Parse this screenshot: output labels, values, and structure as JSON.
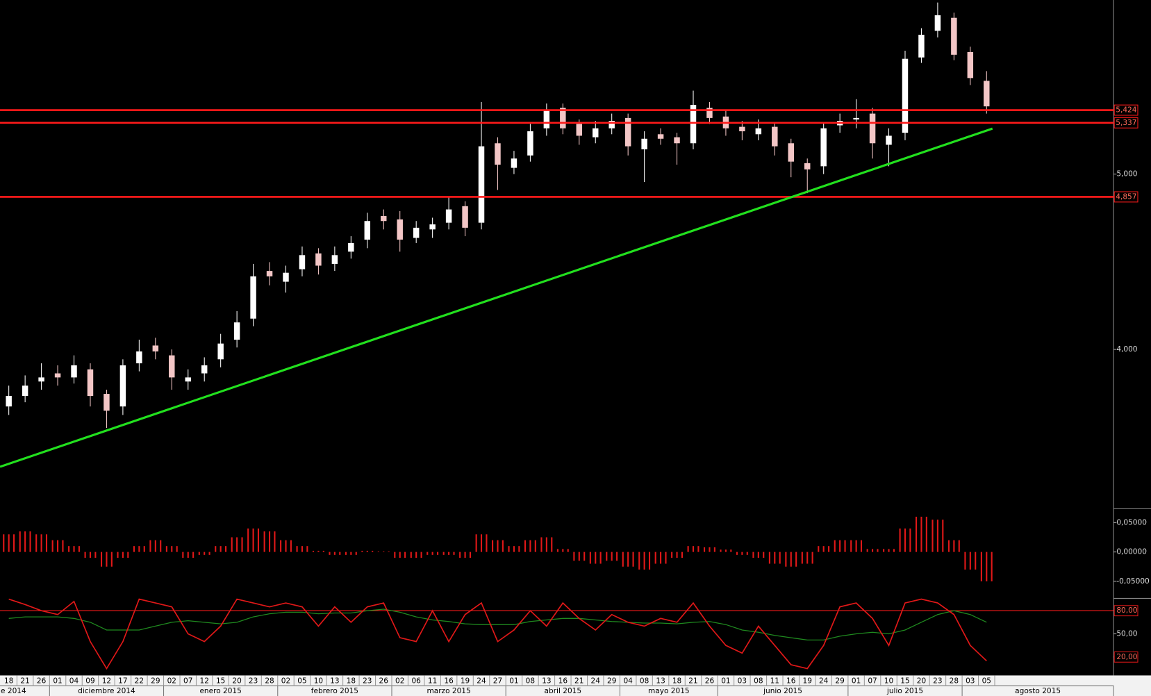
{
  "chart_data": [
    {
      "type": "candlestick",
      "log_scale": true,
      "ylim": [
        3.275,
        6.24
      ],
      "yticks": [
        {
          "value": 4,
          "label": "4,000"
        },
        {
          "value": 5,
          "label": "5,000"
        }
      ],
      "up_color": "#ffffff",
      "down_color": "#f3c6c6",
      "open": [
        3.72,
        3.77,
        3.84,
        3.88,
        3.86,
        3.9,
        3.78,
        3.72,
        3.93,
        4.02,
        3.97,
        3.84,
        3.88,
        3.95,
        4.05,
        4.16,
        4.42,
        4.36,
        4.43,
        4.52,
        4.46,
        4.53,
        4.6,
        4.74,
        4.72,
        4.61,
        4.66,
        4.7,
        4.8,
        4.7,
        5.2,
        5.04,
        5.12,
        5.3,
        5.44,
        5.33,
        5.24,
        5.3,
        5.37,
        5.16,
        5.26,
        5.24,
        5.2,
        5.44,
        5.38,
        5.31,
        5.26,
        5.31,
        5.2,
        5.07,
        5.05,
        5.32,
        5.36,
        5.4,
        5.19,
        5.27,
        5.8,
        6.0,
        6.1,
        5.84,
        5.63
      ],
      "high": [
        3.82,
        3.87,
        3.93,
        3.92,
        3.97,
        3.93,
        3.8,
        3.95,
        4.05,
        4.06,
        4.0,
        3.9,
        3.96,
        4.08,
        4.2,
        4.46,
        4.47,
        4.45,
        4.56,
        4.55,
        4.56,
        4.62,
        4.76,
        4.78,
        4.77,
        4.71,
        4.73,
        4.86,
        4.83,
        5.48,
        5.24,
        5.15,
        5.33,
        5.47,
        5.47,
        5.36,
        5.35,
        5.4,
        5.4,
        5.28,
        5.3,
        5.27,
        5.56,
        5.48,
        5.42,
        5.35,
        5.36,
        5.34,
        5.23,
        5.1,
        5.34,
        5.4,
        5.5,
        5.44,
        5.3,
        5.85,
        6.02,
        6.22,
        6.14,
        5.88,
        5.7
      ],
      "low": [
        3.68,
        3.74,
        3.8,
        3.82,
        3.83,
        3.72,
        3.62,
        3.68,
        3.89,
        3.95,
        3.8,
        3.8,
        3.84,
        3.91,
        4.01,
        4.12,
        4.34,
        4.3,
        4.39,
        4.4,
        4.42,
        4.49,
        4.55,
        4.66,
        4.53,
        4.58,
        4.61,
        4.66,
        4.62,
        4.66,
        4.9,
        5.0,
        5.08,
        5.25,
        5.26,
        5.19,
        5.2,
        5.26,
        5.12,
        4.95,
        5.19,
        5.06,
        5.16,
        5.33,
        5.25,
        5.22,
        5.22,
        5.12,
        4.98,
        4.88,
        5.0,
        5.27,
        5.3,
        5.1,
        5.05,
        5.22,
        5.76,
        5.95,
        5.78,
        5.6,
        5.4
      ],
      "close": [
        3.77,
        3.82,
        3.86,
        3.86,
        3.92,
        3.77,
        3.7,
        3.92,
        3.99,
        3.99,
        3.86,
        3.86,
        3.92,
        4.03,
        4.14,
        4.39,
        4.39,
        4.41,
        4.51,
        4.45,
        4.51,
        4.58,
        4.71,
        4.71,
        4.6,
        4.67,
        4.69,
        4.78,
        4.67,
        5.18,
        5.06,
        5.1,
        5.28,
        5.42,
        5.3,
        5.25,
        5.3,
        5.35,
        5.18,
        5.23,
        5.23,
        5.2,
        5.46,
        5.37,
        5.3,
        5.28,
        5.3,
        5.18,
        5.08,
        5.03,
        5.3,
        5.35,
        5.37,
        5.2,
        5.25,
        5.79,
        5.97,
        6.12,
        5.82,
        5.65,
        5.45
      ],
      "hlines": [
        {
          "value": 5.424,
          "label": "5,424"
        },
        {
          "value": 5.337,
          "label": "5,337"
        },
        {
          "value": 4.857,
          "label": "4,857"
        }
      ],
      "hline_color": "#ff1a1a",
      "trendline": {
        "color": "#22e01e",
        "start": [
          -0.54,
          3.445
        ],
        "end": [
          60.36,
          5.298
        ]
      }
    },
    {
      "type": "bar",
      "color": "#e01818",
      "ylim": [
        -0.079,
        0.071
      ],
      "yticks": [
        {
          "value": 0.05,
          "label": "0,05000"
        },
        {
          "value": 0,
          "label": "0,00000"
        },
        {
          "value": -0.05,
          "label": "-0,05000"
        }
      ],
      "values": [
        0.03,
        0.035,
        0.03,
        0.02,
        0.01,
        -0.01,
        -0.025,
        -0.01,
        0.01,
        0.02,
        0.01,
        -0.01,
        -0.005,
        0.01,
        0.025,
        0.04,
        0.035,
        0.02,
        0.01,
        0.002,
        -0.005,
        -0.005,
        0.002,
        0.001,
        -0.01,
        -0.01,
        -0.005,
        -0.005,
        -0.01,
        0.03,
        0.02,
        0.01,
        0.02,
        0.025,
        0.005,
        -0.015,
        -0.02,
        -0.015,
        -0.025,
        -0.03,
        -0.02,
        -0.01,
        0.01,
        0.008,
        0.004,
        -0.005,
        -0.01,
        -0.02,
        -0.025,
        -0.02,
        0.01,
        0.02,
        0.02,
        0.005,
        0.005,
        0.04,
        0.06,
        0.055,
        0.02,
        -0.03,
        -0.05
      ]
    },
    {
      "type": "line",
      "ylim": [
        -2,
        96
      ],
      "yticks": [
        {
          "value": 80,
          "label": "80,00",
          "boxed": true
        },
        {
          "value": 50,
          "label": "50,00"
        },
        {
          "value": 20,
          "label": "20,00",
          "boxed": true
        }
      ],
      "hline": {
        "value": 80,
        "color": "#ff1a1a"
      },
      "categories": [
        "18",
        "21",
        "26",
        "01",
        "04",
        "09",
        "12",
        "17",
        "22",
        "29",
        "02",
        "07",
        "12",
        "15",
        "20",
        "23",
        "28",
        "02",
        "05",
        "10",
        "13",
        "18",
        "23",
        "26",
        "02",
        "06",
        "11",
        "16",
        "19",
        "24",
        "27",
        "01",
        "08",
        "13",
        "16",
        "21",
        "24",
        "29",
        "04",
        "08",
        "13",
        "18",
        "21",
        "26",
        "01",
        "03",
        "08",
        "11",
        "16",
        "19",
        "24",
        "29",
        "01",
        "07",
        "10",
        "15",
        "20",
        "23",
        "28",
        "03",
        "05"
      ],
      "months": [
        "e 2014",
        "diciembre 2014",
        "enero 2015",
        "febrero 2015",
        "marzo 2015",
        "abril 2015",
        "mayo 2015",
        "junio 2015",
        "julio 2015",
        "agosto 2015"
      ],
      "series": [
        {
          "color": "#e01818",
          "values": [
            95,
            88,
            80,
            75,
            92,
            40,
            5,
            40,
            95,
            90,
            85,
            50,
            40,
            60,
            95,
            90,
            85,
            90,
            85,
            60,
            85,
            65,
            85,
            90,
            45,
            40,
            80,
            40,
            75,
            90,
            40,
            55,
            80,
            60,
            90,
            70,
            55,
            75,
            65,
            60,
            70,
            65,
            90,
            60,
            35,
            25,
            60,
            35,
            10,
            5,
            35,
            85,
            90,
            70,
            35,
            90,
            95,
            90,
            75,
            35,
            15
          ]
        },
        {
          "color": "#1f8a1f",
          "values": [
            70,
            72,
            72,
            72,
            70,
            65,
            55,
            55,
            55,
            60,
            65,
            67,
            65,
            63,
            65,
            72,
            76,
            78,
            78,
            76,
            77,
            77,
            80,
            82,
            78,
            72,
            68,
            66,
            63,
            62,
            62,
            62,
            66,
            68,
            70,
            70,
            68,
            66,
            65,
            64,
            64,
            63,
            65,
            66,
            62,
            55,
            52,
            48,
            45,
            42,
            42,
            47,
            50,
            52,
            50,
            55,
            65,
            75,
            80,
            75,
            65
          ]
        }
      ]
    }
  ]
}
